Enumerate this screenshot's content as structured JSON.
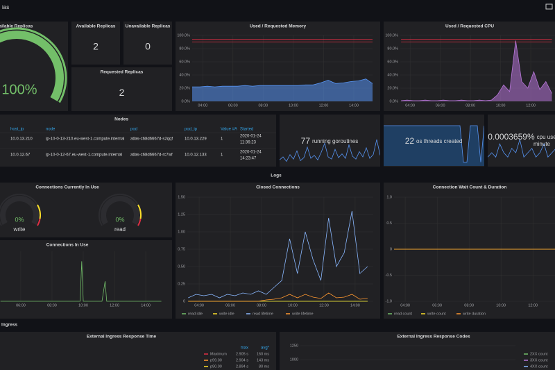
{
  "header": {
    "title": "ias"
  },
  "sections": {
    "logs": "Logs",
    "ingress": "Ingress"
  },
  "gauge": {
    "title": "Available Replicas",
    "value": 100,
    "value_label": "100%",
    "max": 100,
    "color": "#73bf69"
  },
  "stats": [
    {
      "title": "Available Replicas",
      "value": 2
    },
    {
      "title": "Unavailable Replicas",
      "value": 0
    },
    {
      "title": "Requested Replicas",
      "value": 2
    }
  ],
  "memory": {
    "type": "area",
    "title": "Used / Requested Memory",
    "x": [
      3.3,
      3.8,
      4.3,
      4.8,
      5.3,
      5.8,
      6.3,
      6.8,
      7.3,
      7.8,
      8.3,
      8.8,
      9.3,
      9.8,
      10.3,
      10.8,
      11.3,
      11.8,
      12.3,
      12.8,
      13.3,
      13.8,
      14.3,
      14.8,
      15.24
    ],
    "series": [
      {
        "color": "#5794f2",
        "fill": true,
        "values": [
          22,
          22,
          23,
          22,
          23,
          23,
          23,
          24,
          23,
          24,
          24,
          24,
          24,
          24,
          24,
          25,
          25,
          28,
          32,
          27,
          28,
          30,
          31,
          34,
          27
        ]
      },
      {
        "color": "#e02f44",
        "values": [
          94,
          94,
          94,
          94,
          94,
          94,
          94,
          94,
          94,
          94,
          94,
          94,
          94,
          94,
          94,
          94,
          94,
          94,
          94,
          94,
          94,
          94,
          94,
          94,
          94
        ]
      },
      {
        "color": "#e02f44",
        "values": [
          90,
          90,
          90,
          90,
          90,
          90,
          90,
          90,
          90,
          90,
          90,
          90,
          90,
          90,
          90,
          90,
          90,
          90,
          90,
          90,
          90,
          90,
          90,
          90,
          90
        ]
      }
    ],
    "xlim": [
      3.3,
      15.24
    ],
    "ylim": [
      0,
      100
    ],
    "xticks": [
      {
        "value": 4,
        "label": "04:00"
      },
      {
        "value": 6,
        "label": "06:00"
      },
      {
        "value": 8,
        "label": "08:00"
      },
      {
        "value": 10,
        "label": "10:00"
      },
      {
        "value": 12,
        "label": "12:00"
      },
      {
        "value": 14,
        "label": "14:00"
      }
    ],
    "yticks": [
      {
        "value": 0,
        "label": "0.0%"
      },
      {
        "value": 20,
        "label": "20.0%"
      },
      {
        "value": 40,
        "label": "40.0%"
      },
      {
        "value": 60,
        "label": "60.0%"
      },
      {
        "value": 80,
        "label": "80.0%"
      },
      {
        "value": 100,
        "label": "100.0%"
      }
    ]
  },
  "cpu": {
    "type": "area",
    "title": "Used / Requested CPU",
    "x": [
      3.4,
      3.8,
      4.2,
      4.6,
      5.0,
      5.4,
      5.8,
      6.2,
      6.6,
      7.0,
      7.4,
      7.8,
      8.2,
      8.6,
      9.0,
      9.4,
      9.8,
      10.2,
      10.6,
      11.0,
      11.4,
      11.8,
      12.2,
      12.6,
      13.0,
      13.4
    ],
    "series": [
      {
        "color": "#b877d9",
        "fill": true,
        "values": [
          1,
          2,
          1,
          1,
          2,
          1,
          1,
          2,
          1,
          1,
          2,
          1,
          1,
          2,
          1,
          2,
          10,
          25,
          15,
          92,
          30,
          20,
          45,
          18,
          30,
          12
        ]
      },
      {
        "color": "#e02f44",
        "values": [
          94,
          94,
          94,
          94,
          94,
          94,
          94,
          94,
          94,
          94,
          94,
          94,
          94,
          94,
          94,
          94,
          94,
          94,
          94,
          94,
          94,
          94,
          94,
          94,
          94,
          94
        ]
      },
      {
        "color": "#e02f44",
        "values": [
          90,
          90,
          90,
          90,
          90,
          90,
          90,
          90,
          90,
          90,
          90,
          90,
          90,
          90,
          90,
          90,
          90,
          90,
          90,
          90,
          90,
          90,
          90,
          90,
          90,
          90
        ]
      }
    ],
    "xlim": [
      3.35,
      15.4
    ],
    "ylim": [
      0,
      100
    ],
    "xticks": [
      {
        "value": 4,
        "label": "04:00"
      },
      {
        "value": 6,
        "label": "06:00"
      },
      {
        "value": 8,
        "label": "08:00"
      },
      {
        "value": 10,
        "label": "10:00"
      },
      {
        "value": 12,
        "label": "12:00"
      }
    ],
    "yticks": [
      {
        "value": 0,
        "label": "0.0%"
      },
      {
        "value": 20,
        "label": "20.0%"
      },
      {
        "value": 40,
        "label": "40.0%"
      },
      {
        "value": 60,
        "label": "60.0%"
      },
      {
        "value": 80,
        "label": "80.0%"
      },
      {
        "value": 100,
        "label": "100.0%"
      }
    ]
  },
  "nodes": {
    "title": "Nodes",
    "columns": [
      "host_ip",
      "node",
      "pod",
      "pod_ip",
      "Value #A",
      "Started"
    ],
    "rows": [
      [
        "10.0.13.210",
        "ip-10-0-13-210.eu-west-1.compute.internal",
        "atlas-c68d6667d-s2qqf",
        "10.0.13.229",
        "1",
        [
          "2020-01-24",
          "11:36:23"
        ]
      ],
      [
        "10.0.12.67",
        "ip-10-0-12-67.eu-west-1.compute.internal",
        "atlas-c68d6667d-rc7wf",
        "10.0.12.133",
        "1",
        [
          "2020-01-24",
          "14:23:47"
        ]
      ]
    ]
  },
  "goroutines": {
    "value": 77,
    "unit_text": "running goroutines",
    "color": "#5794f2",
    "spark": [
      8,
      12,
      6,
      15,
      9,
      20,
      7,
      11,
      25,
      10,
      14,
      8,
      18,
      30,
      12,
      9,
      22,
      11,
      16,
      10,
      28,
      13,
      9,
      19,
      12,
      24,
      10,
      15,
      35,
      14
    ]
  },
  "threads": {
    "value": 22,
    "unit_text": "os threads created",
    "color": "#5794f2",
    "spark": [
      22,
      22,
      22,
      22,
      22,
      22,
      22,
      22,
      22,
      22,
      22,
      22,
      22,
      22,
      22,
      22,
      22,
      22,
      22,
      22,
      22,
      22,
      22,
      2,
      2,
      22,
      22,
      22,
      2,
      22
    ]
  },
  "cpu_stat": {
    "value": 0.0003659,
    "value_label": "0.0003659%",
    "unit_lines": [
      "cpu used by",
      "minute"
    ],
    "color": "#5794f2",
    "spark": [
      2,
      3,
      2,
      5,
      3,
      2,
      4,
      3,
      6,
      2,
      3,
      4,
      2,
      3,
      5,
      2,
      3,
      4,
      3,
      2
    ]
  },
  "conn_gauges": {
    "title": "Connections Currently In Use",
    "max": 100,
    "items": [
      {
        "name": "write",
        "value": 0,
        "value_label": "0%"
      },
      {
        "name": "read",
        "value": 0,
        "value_label": "0%"
      }
    ]
  },
  "conn_in_use": {
    "type": "line",
    "title": "Connections In Use",
    "x": [
      4.7,
      5.5,
      6.5,
      7.5,
      8.5,
      9.5,
      9.8,
      9.9,
      10.0,
      10.5,
      11.2,
      11.4,
      11.5,
      12.0,
      13.0,
      14.0,
      15.0
    ],
    "series": [
      {
        "color": "#73bf69",
        "values": [
          0,
          0,
          0,
          0,
          0,
          0,
          0,
          0.8,
          0,
          0,
          0,
          0.4,
          0,
          0,
          0,
          0,
          0
        ]
      }
    ],
    "xlim": [
      4.67,
      15.24
    ],
    "ylim": [
      0,
      1
    ],
    "xticks": [
      {
        "value": 6,
        "label": "06:00"
      },
      {
        "value": 8,
        "label": "08:00"
      },
      {
        "value": 10,
        "label": "10:00"
      },
      {
        "value": 12,
        "label": "12:00"
      },
      {
        "value": 14,
        "label": "14:00"
      }
    ]
  },
  "closed": {
    "type": "line",
    "title": "Closed Connections",
    "x": [
      3.3,
      3.8,
      4.3,
      4.8,
      5.3,
      5.8,
      6.3,
      6.8,
      7.3,
      7.8,
      8.3,
      8.8,
      9.3,
      9.8,
      10.3,
      10.8,
      11.3,
      11.8,
      12.3,
      12.8,
      13.3,
      13.8,
      14.3,
      14.8
    ],
    "series": [
      {
        "name": "read idle",
        "color": "#73bf69",
        "values": [
          0,
          0,
          0,
          0,
          0,
          0,
          0,
          0,
          0,
          0,
          0,
          0,
          0,
          0,
          0,
          0,
          0,
          0,
          0,
          0,
          0,
          0,
          0,
          0
        ]
      },
      {
        "name": "write idle",
        "color": "#fade2a",
        "values": [
          0,
          0,
          0,
          0,
          0,
          0,
          0,
          0,
          0,
          0,
          0,
          0,
          0,
          0,
          0,
          0,
          0,
          0,
          0,
          0,
          0,
          0,
          0,
          0
        ]
      },
      {
        "name": "read lifetime",
        "color": "#8ab8ff",
        "values": [
          0.05,
          0.1,
          0.08,
          0.1,
          0.05,
          0.1,
          0.08,
          0.12,
          0.1,
          0.15,
          0.1,
          0.2,
          0.3,
          0.9,
          0.4,
          1.0,
          0.6,
          0.3,
          1.2,
          0.5,
          0.7,
          1.3,
          0.4,
          0.5
        ]
      },
      {
        "name": "write lifetime",
        "color": "#ff9830",
        "values": [
          0,
          0,
          0,
          0,
          0,
          0,
          0,
          0,
          0,
          0,
          0.02,
          0.03,
          0.05,
          0.1,
          0.05,
          0.1,
          0.06,
          0.04,
          0.12,
          0.05,
          0.06,
          0.1,
          0.03,
          0.04
        ]
      }
    ],
    "xlim": [
      3.24,
      15.16
    ],
    "ylim": [
      0,
      1.5
    ],
    "xticks": [
      {
        "value": 4,
        "label": "04:00"
      },
      {
        "value": 6,
        "label": "06:00"
      },
      {
        "value": 8,
        "label": "08:00"
      },
      {
        "value": 10,
        "label": "10:00"
      },
      {
        "value": 12,
        "label": "12:00"
      },
      {
        "value": 14,
        "label": "14:00"
      }
    ],
    "yticks": [
      0,
      0.25,
      {
        "value": 0.5,
        "label": "0.50"
      },
      0.75,
      {
        "value": 1,
        "label": "1.00"
      },
      1.25,
      {
        "value": 1.5,
        "label": "1.50"
      }
    ]
  },
  "wait": {
    "type": "line",
    "title": "Connection Wait Count & Duration",
    "x": [
      3.3,
      3.8,
      4.3,
      4.8,
      5.3,
      5.8,
      6.3,
      6.8,
      7.3,
      7.8,
      8.3,
      8.8,
      9.3,
      9.8,
      10.3,
      10.8,
      11.3,
      11.8,
      12.3,
      12.8,
      13.3,
      13.8,
      14.3,
      14.8
    ],
    "series": [
      {
        "name": "read count",
        "color": "#73bf69",
        "values": [
          0,
          0,
          0,
          0,
          0,
          0,
          0,
          0,
          0,
          0,
          0,
          0,
          0,
          0,
          0,
          0,
          0,
          0,
          0,
          0,
          0,
          0,
          0,
          0
        ]
      },
      {
        "name": "write count",
        "color": "#fade2a",
        "values": [
          0,
          0,
          0,
          0,
          0,
          0,
          0,
          0,
          0,
          0,
          0,
          0,
          0,
          0,
          0,
          0,
          0,
          0,
          0,
          0,
          0,
          0,
          0,
          0
        ]
      },
      {
        "name": "write duration",
        "color": "#ff9830",
        "values": [
          0,
          0,
          0,
          0,
          0,
          0,
          0,
          0,
          0,
          0,
          0,
          0,
          0,
          0,
          0,
          0,
          0,
          0,
          0,
          0,
          0,
          0,
          0,
          0
        ]
      }
    ],
    "xlim": [
      3.3,
      15.25
    ],
    "ylim": [
      -1,
      1
    ],
    "xticks": [
      {
        "value": 4,
        "label": "04:00"
      },
      {
        "value": 6,
        "label": "06:00"
      },
      {
        "value": 8,
        "label": "08:00"
      },
      {
        "value": 10,
        "label": "10:00"
      },
      {
        "value": 12,
        "label": "12:00"
      }
    ],
    "yticks": [
      {
        "value": -1,
        "label": "-1.0"
      },
      -0.5,
      0,
      0.5,
      {
        "value": 1,
        "label": "1.0"
      }
    ]
  },
  "resp_time": {
    "title": "External Ingress Response Time",
    "headers": [
      "max",
      "avg*"
    ],
    "rows": [
      {
        "name": "Maximum",
        "color": "#e02f44",
        "max": "2.905 s",
        "avg": "160 ms"
      },
      {
        "name": "p99.00",
        "color": "#ff9830",
        "max": "2.904 s",
        "avg": "143 ms"
      },
      {
        "name": "p90.00",
        "color": "#fade2a",
        "max": "2.894 s",
        "avg": "80 ms"
      }
    ]
  },
  "resp_codes": {
    "title": "External Ingress Response Codes",
    "ylim": [
      0,
      1320
    ],
    "yticks": [
      1000,
      1250
    ],
    "legend": [
      {
        "name": "2XX count",
        "color": "#73bf69"
      },
      {
        "name": "3XX count",
        "color": "#b877d9"
      },
      {
        "name": "4XX count",
        "color": "#8ab8ff"
      }
    ]
  }
}
